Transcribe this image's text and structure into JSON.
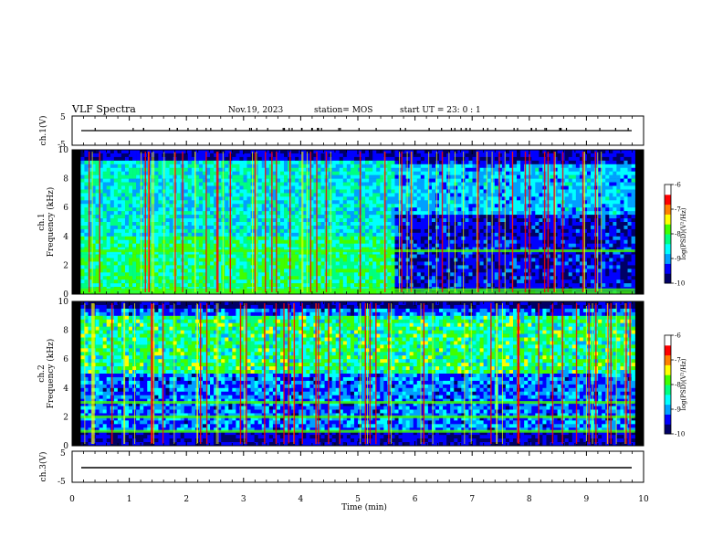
{
  "header": {
    "title": "VLF Spectra",
    "date": "Nov.19, 2023",
    "station": "station= MOS",
    "start": "start  UT =   23: 0  : 1"
  },
  "colors": {
    "colormap": [
      "#000066",
      "#0000ff",
      "#00a0ff",
      "#00ffff",
      "#00ff80",
      "#40ff00",
      "#ffff00",
      "#ff8000",
      "#ff0000",
      "#ffffff"
    ],
    "background": "#000044"
  },
  "chart_data": [
    {
      "type": "line",
      "name": "ch1-voltage",
      "ylabel": "ch.1(V)",
      "ylim": [
        -5,
        5
      ],
      "yticks": [
        "5",
        "-5"
      ],
      "level": -1
    },
    {
      "type": "heatmap",
      "name": "ch1-spectrogram",
      "ylabel": "Frequency (kHz)",
      "ylabel2": "ch.1",
      "ylim": [
        0,
        10
      ],
      "yticks": [
        "0",
        "2",
        "4",
        "6",
        "8",
        "10"
      ],
      "colorbar": {
        "label": "log(PSD)(V²/Hz)",
        "range": [
          -10,
          -6
        ],
        "ticks": [
          "-6",
          "-7",
          "-8",
          "-9",
          "-10"
        ]
      },
      "bands_khz": [
        3.0,
        0.3,
        0.1
      ],
      "regime_change_min": 5.6
    },
    {
      "type": "heatmap",
      "name": "ch2-spectrogram",
      "ylabel": "Frequency (kHz)",
      "ylabel2": "ch.2",
      "ylim": [
        0,
        10
      ],
      "yticks": [
        "0",
        "2",
        "4",
        "6",
        "8",
        "10"
      ],
      "colorbar": {
        "label": "log(PSD)(V²/Hz)",
        "range": [
          -10,
          -6
        ],
        "ticks": [
          "-6",
          "-7",
          "-8",
          "-9",
          "-10"
        ]
      },
      "bands_khz": [
        3.0,
        2.0,
        1.0
      ]
    },
    {
      "type": "line",
      "name": "ch3-voltage",
      "ylabel": "ch.3(V)",
      "ylim": [
        -5,
        5
      ],
      "yticks": [
        "5",
        "-5"
      ],
      "level": -1
    }
  ],
  "xaxis": {
    "label": "Time  (min)",
    "xlim": [
      0,
      10
    ],
    "ticks": [
      "0",
      "1",
      "2",
      "3",
      "4",
      "5",
      "6",
      "7",
      "8",
      "9",
      "10"
    ]
  }
}
